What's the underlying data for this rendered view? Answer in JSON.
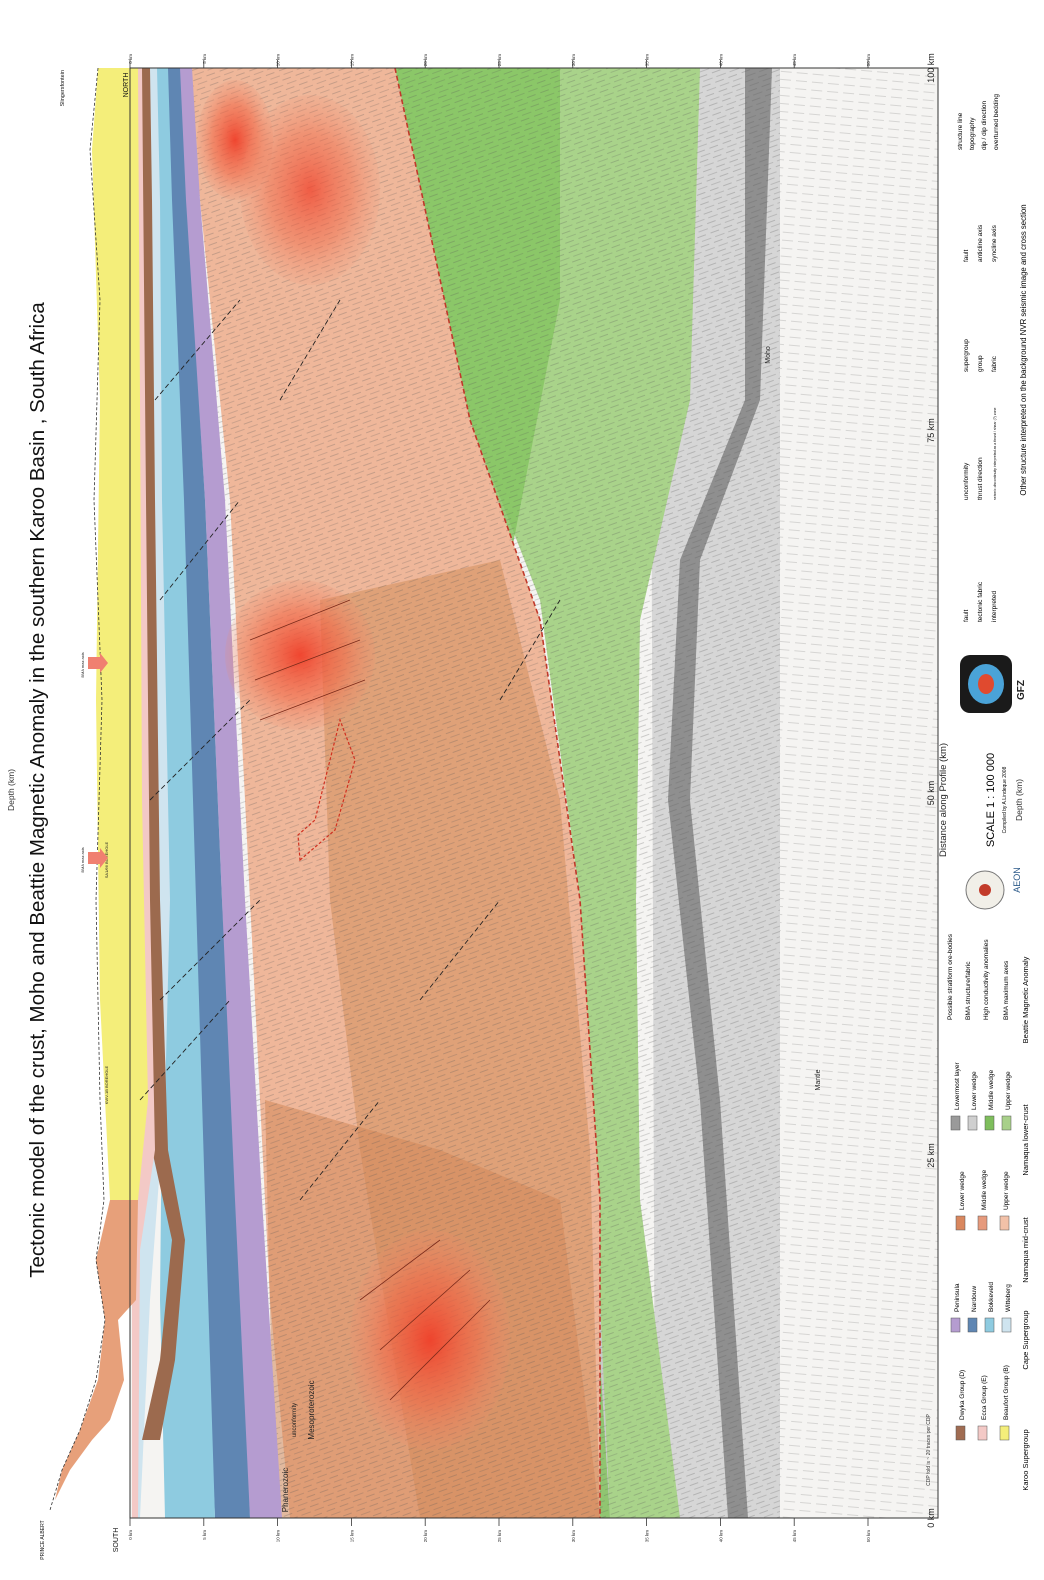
{
  "title": "Tectonic model of the crust, Moho and Beattie Magnetic Anomaly in the southern Karoo Basin , South Africa",
  "ends": {
    "south": "SOUTH",
    "north": "NORTH",
    "town_left": "PRINCE ALBERT",
    "town_right": "Slingersfontein"
  },
  "axes": {
    "depth_label": "Depth (km)",
    "depth_ticks": [
      "0 km",
      "5 km",
      "10 km",
      "15 km",
      "20 km",
      "25 km",
      "30 km",
      "35 km",
      "40 km",
      "45 km",
      "50 km"
    ],
    "distance_label": "Distance along Profile (km)",
    "distance_ticks": [
      "0 km",
      "25 km",
      "50 km",
      "75 km",
      "100 km"
    ],
    "cdp_note": "CDP fold is ~ 20 traces per CDP"
  },
  "section_labels": {
    "phanerozoic": "Phanerozoic",
    "unconformity": "unconformity",
    "mesoproterozoic": "Mesoproterozoic",
    "moho": "Moho",
    "mantle": "Mantle"
  },
  "boreholes": {
    "kwv": "KWV-1B BOREHOLE",
    "sa1": "SA1/66 BOREHOLE",
    "bma1": "BMA max axis",
    "bma2": "BMA max axis"
  },
  "legend": {
    "karoo": {
      "title": "Karoo Supergroup",
      "items": [
        "Beaufort Group (B)",
        "Ecca Group (E)",
        "Dwyka Group (D)"
      ],
      "colors": [
        "#f4ee7a",
        "#f3c9c6",
        "#a06c52"
      ]
    },
    "cape": {
      "title": "Cape Supergroup",
      "items": [
        "Witteberg",
        "Bokkeveld",
        "Nardouw",
        "Peninsula"
      ],
      "colors": [
        "#cfe4ef",
        "#8ecbe0",
        "#5f86b3",
        "#b59cd0"
      ]
    },
    "namaqua_mid": {
      "title": "Namaqua mid-crust",
      "items": [
        "Upper wedge",
        "Middle wedge",
        "Lower wedge"
      ],
      "colors": [
        "#f2c1a8",
        "#e69a7c",
        "#d9875e"
      ]
    },
    "namaqua_lower": {
      "title": "Namaqua lower-crust",
      "items": [
        "Upper wedge",
        "Middle wedge",
        "Lower wedge",
        "Lowermost layer"
      ],
      "colors": [
        "#a8d08a",
        "#7ebe5c",
        "#cfcfcf",
        "#9a9a9a"
      ]
    },
    "bma": {
      "title": "Beattie Magnetic Anomaly",
      "items": [
        "BMA maximum axes",
        "High conductivity anomalies",
        "BMA structure/fabric",
        "Possible stratiform ore-bodies"
      ]
    },
    "structures": {
      "items": [
        "fault",
        "tectonic fabric",
        "interpreted",
        "unconformity",
        "thrust direction",
        "seismic discontinuity interpreted as a thrust / shear (?) zone",
        "supergroup",
        "group",
        "fabric",
        "fault",
        "anticline axis",
        "syncline axis",
        "structure line",
        "topography",
        "dip / dip direction",
        "overturned bedding"
      ]
    },
    "scale": "SCALE 1 : 100 000",
    "compiled": "Compiled by A.Lindeque 2008",
    "logos": [
      "AEON",
      "GFZ"
    ],
    "footnote": "Other structure interpreted on the background NVR seismic image and cross section"
  }
}
